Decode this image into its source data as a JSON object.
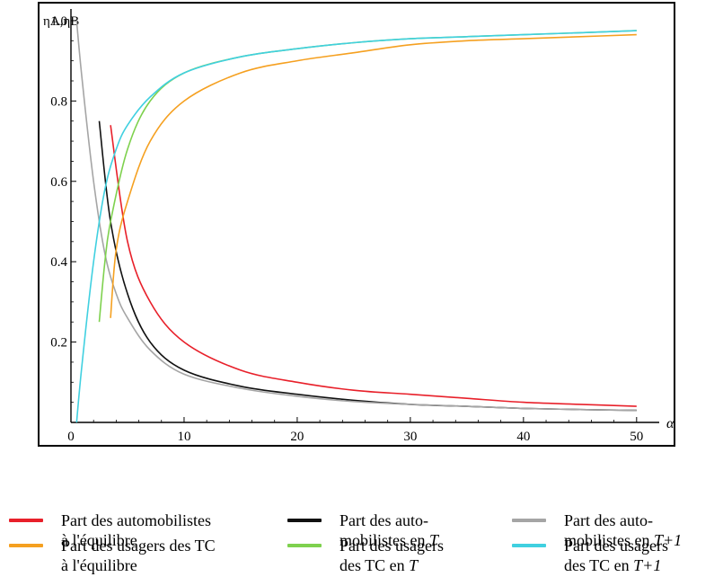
{
  "chart_data": {
    "type": "line",
    "ylabel": "ηA,ηB",
    "xlabel": "α",
    "xlim": [
      0,
      52
    ],
    "ylim": [
      0,
      1.02
    ],
    "x_ticks": [
      0,
      10,
      20,
      30,
      40,
      50
    ],
    "x_tick_labels": [
      "0",
      "10",
      "20",
      "30",
      "40",
      "50"
    ],
    "y_ticks": [
      0.2,
      0.4,
      0.6,
      0.8,
      1.0
    ],
    "y_tick_labels": [
      "0.2",
      "0.4",
      "0.6",
      "0.8",
      "1.0"
    ],
    "grid": false,
    "legend_position": "bottom",
    "series": [
      {
        "key": "auto_eq",
        "color": "#e8202a",
        "x": [
          3.5,
          5,
          7,
          10,
          15,
          20,
          25,
          30,
          35,
          40,
          45,
          50
        ],
        "values": [
          0.74,
          0.45,
          0.3,
          0.2,
          0.13,
          0.1,
          0.08,
          0.07,
          0.06,
          0.05,
          0.045,
          0.04
        ]
      },
      {
        "key": "auto_T",
        "color": "#111111",
        "x": [
          2.5,
          3.5,
          5,
          7,
          10,
          15,
          20,
          25,
          30,
          35,
          40,
          45,
          50
        ],
        "values": [
          0.75,
          0.5,
          0.32,
          0.2,
          0.13,
          0.09,
          0.07,
          0.055,
          0.045,
          0.04,
          0.035,
          0.032,
          0.03
        ]
      },
      {
        "key": "auto_T1",
        "color": "#a5a5a5",
        "x": [
          0.5,
          1,
          2,
          3,
          4,
          5,
          7,
          10,
          15,
          20,
          25,
          30,
          35,
          40,
          45,
          50
        ],
        "values": [
          1.0,
          0.85,
          0.6,
          0.42,
          0.32,
          0.26,
          0.18,
          0.12,
          0.085,
          0.065,
          0.052,
          0.045,
          0.04,
          0.035,
          0.032,
          0.03
        ]
      },
      {
        "key": "tc_eq",
        "color": "#f5a020",
        "x": [
          3.5,
          4,
          5,
          7,
          10,
          15,
          20,
          25,
          30,
          35,
          40,
          45,
          50
        ],
        "values": [
          0.26,
          0.43,
          0.55,
          0.7,
          0.8,
          0.87,
          0.9,
          0.92,
          0.94,
          0.95,
          0.955,
          0.96,
          0.965
        ]
      },
      {
        "key": "tc_T",
        "color": "#7ed14e",
        "x": [
          2.5,
          3,
          3.5,
          5,
          7,
          10,
          15,
          20,
          25,
          30,
          35,
          40,
          45,
          50
        ],
        "values": [
          0.25,
          0.4,
          0.5,
          0.68,
          0.8,
          0.87,
          0.91,
          0.93,
          0.945,
          0.955,
          0.96,
          0.965,
          0.97,
          0.975
        ]
      },
      {
        "key": "tc_T1",
        "color": "#40d0e0",
        "x": [
          0.5,
          1,
          2,
          3,
          4,
          5,
          7,
          10,
          15,
          20,
          25,
          30,
          35,
          40,
          45,
          50
        ],
        "values": [
          0.0,
          0.15,
          0.4,
          0.58,
          0.68,
          0.74,
          0.81,
          0.87,
          0.91,
          0.93,
          0.945,
          0.955,
          0.96,
          0.965,
          0.97,
          0.975
        ]
      }
    ]
  },
  "legend": {
    "items": [
      {
        "color": "#e8202a",
        "line1": "Part des automobilistes",
        "line2_prefix": "à l'équilibre",
        "line2_var": ""
      },
      {
        "color": "#111111",
        "line1": "Part des auto-",
        "line2_prefix": "mobilistes en ",
        "line2_var": "T"
      },
      {
        "color": "#a5a5a5",
        "line1": "Part des auto-",
        "line2_prefix": "mobilistes en ",
        "line2_var": "T+1"
      },
      {
        "color": "#f5a020",
        "line1": "Part des usagers des TC",
        "line2_prefix": "à l'équilibre",
        "line2_var": ""
      },
      {
        "color": "#7ed14e",
        "line1": "Part des usagers",
        "line2_prefix": "des TC en ",
        "line2_var": "T"
      },
      {
        "color": "#40d0e0",
        "line1": "Part des usagers",
        "line2_prefix": "des TC en ",
        "line2_var": "T+1"
      }
    ]
  }
}
